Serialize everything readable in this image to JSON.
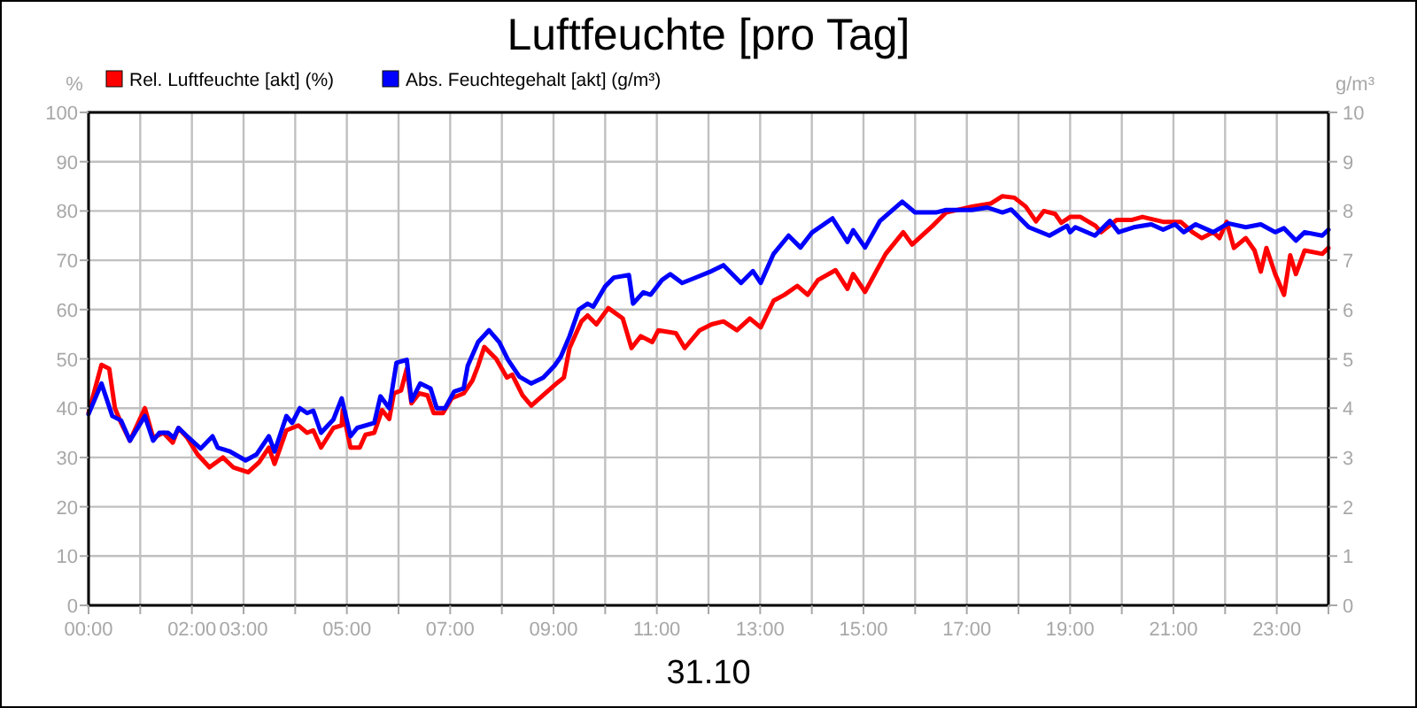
{
  "chart_data": {
    "type": "line",
    "title": "Luftfeuchte [pro Tag]",
    "xlabel": "31.10",
    "ylabel": "%",
    "y2label": "g/m³",
    "xlim": [
      0,
      24
    ],
    "xticks": [
      {
        "value": 0,
        "label": "00:00"
      },
      {
        "value": 1,
        "label": null
      },
      {
        "value": 2,
        "label": "02:00"
      },
      {
        "value": 3,
        "label": "03:00"
      },
      {
        "value": 4,
        "label": null
      },
      {
        "value": 5,
        "label": "05:00"
      },
      {
        "value": 6,
        "label": null
      },
      {
        "value": 7,
        "label": "07:00"
      },
      {
        "value": 8,
        "label": null
      },
      {
        "value": 9,
        "label": "09:00"
      },
      {
        "value": 10,
        "label": null
      },
      {
        "value": 11,
        "label": "11:00"
      },
      {
        "value": 12,
        "label": null
      },
      {
        "value": 13,
        "label": "13:00"
      },
      {
        "value": 14,
        "label": null
      },
      {
        "value": 15,
        "label": "15:00"
      },
      {
        "value": 16,
        "label": null
      },
      {
        "value": 17,
        "label": "17:00"
      },
      {
        "value": 18,
        "label": null
      },
      {
        "value": 19,
        "label": "19:00"
      },
      {
        "value": 20,
        "label": null
      },
      {
        "value": 21,
        "label": "21:00"
      },
      {
        "value": 22,
        "label": null
      },
      {
        "value": 23,
        "label": "23:00"
      },
      {
        "value": 24,
        "label": null
      }
    ],
    "ylim": [
      0,
      100
    ],
    "yticks": [
      0,
      10,
      20,
      30,
      40,
      50,
      60,
      70,
      80,
      90,
      100
    ],
    "y2lim": [
      0,
      10
    ],
    "y2ticks": [
      0,
      1,
      2,
      3,
      4,
      5,
      6,
      7,
      8,
      9,
      10
    ],
    "grid": true,
    "legend": "top left",
    "marker": "none",
    "line_style": "solid",
    "series": [
      {
        "name": "Rel. Luftfeuchte [akt] (%)",
        "color": "#ff0000",
        "x": [
          0,
          0.25,
          0.4,
          0.51,
          0.63,
          0.8,
          1.09,
          1.25,
          1.45,
          1.63,
          1.74,
          1.91,
          2.11,
          2.34,
          2.6,
          2.8,
          3.09,
          3.3,
          3.49,
          3.6,
          3.83,
          4.06,
          4.23,
          4.35,
          4.5,
          4.74,
          4.9,
          4.92,
          5.07,
          5.25,
          5.36,
          5.53,
          5.68,
          5.82,
          5.91,
          6.05,
          6.16,
          6.25,
          6.4,
          6.56,
          6.68,
          6.86,
          7.03,
          7.26,
          7.43,
          7.54,
          7.66,
          7.89,
          8.1,
          8.2,
          8.4,
          8.57,
          8.86,
          9.08,
          9.2,
          9.31,
          9.54,
          9.66,
          9.83,
          10.06,
          10.34,
          10.51,
          10.69,
          10.91,
          11.03,
          11.37,
          11.54,
          11.83,
          12.06,
          12.29,
          12.55,
          12.8,
          13.01,
          13.26,
          13.47,
          13.72,
          13.92,
          14.12,
          14.46,
          14.69,
          14.8,
          15.03,
          15.43,
          15.77,
          15.94,
          16.34,
          16.6,
          17.1,
          17.46,
          17.69,
          17.92,
          18.14,
          18.34,
          18.49,
          18.71,
          18.83,
          19,
          19.2,
          19.49,
          19.6,
          19.9,
          20.2,
          20.4,
          20.8,
          21.14,
          21.37,
          21.55,
          21.77,
          21.89,
          22.03,
          22.17,
          22.4,
          22.57,
          22.69,
          22.8,
          22.97,
          23.14,
          23.26,
          23.37,
          23.54,
          23.88,
          24
        ],
        "values": [
          39,
          48.8,
          48,
          40,
          37,
          33.4,
          40,
          34,
          35,
          33,
          36,
          34,
          30.6,
          28,
          30,
          28,
          27,
          29,
          32,
          28.7,
          35.5,
          36.5,
          35,
          35.5,
          32,
          36,
          36.5,
          39.6,
          32,
          32,
          34.6,
          35,
          39.6,
          37.8,
          43,
          43.6,
          48,
          41,
          43,
          42.6,
          39,
          39,
          42,
          43,
          45.6,
          48.6,
          52.4,
          50,
          46.2,
          46.8,
          42.6,
          40.5,
          43.2,
          45.2,
          46.2,
          52.2,
          57.6,
          58.8,
          57,
          60.3,
          58.2,
          52.2,
          54.6,
          53.4,
          55.8,
          55.2,
          52.2,
          55.8,
          57,
          57.6,
          55.8,
          58.2,
          56.4,
          61.8,
          63,
          64.8,
          63,
          66,
          68,
          64.2,
          67.2,
          63.6,
          71.3,
          75.7,
          73.2,
          77,
          79.7,
          80.9,
          81.5,
          83,
          82.7,
          80.9,
          77.9,
          80,
          79.4,
          77.6,
          78.8,
          78.8,
          77,
          75.7,
          78.2,
          78.2,
          78.8,
          77.8,
          77.8,
          75.7,
          74.5,
          75.7,
          74.5,
          77.8,
          72.5,
          74.5,
          72,
          67.7,
          72.5,
          67.2,
          63,
          71,
          67.2,
          72,
          71.3,
          72.5
        ]
      },
      {
        "name": "Abs. Feuchtegehalt [akt] (g/m³)",
        "color": "#0000ff",
        "axis": "y2",
        "x": [
          0,
          0.25,
          0.46,
          0.63,
          0.8,
          1.09,
          1.25,
          1.37,
          1.54,
          1.65,
          1.74,
          1.91,
          2.17,
          2.4,
          2.5,
          2.74,
          3.04,
          3.25,
          3.49,
          3.6,
          3.83,
          3.94,
          4.09,
          4.23,
          4.35,
          4.5,
          4.74,
          4.9,
          5.07,
          5.2,
          5.53,
          5.65,
          5.82,
          5.96,
          6.16,
          6.25,
          6.42,
          6.62,
          6.74,
          6.9,
          7.08,
          7.26,
          7.34,
          7.54,
          7.75,
          7.95,
          8.12,
          8.34,
          8.57,
          8.8,
          9.02,
          9.14,
          9.31,
          9.49,
          9.66,
          9.77,
          10,
          10.17,
          10.46,
          10.54,
          10.74,
          10.88,
          11.1,
          11.26,
          11.49,
          11.78,
          12.06,
          12.29,
          12.63,
          12.86,
          13.01,
          13.26,
          13.55,
          13.78,
          14,
          14.4,
          14.69,
          14.8,
          15.03,
          15.32,
          15.75,
          16,
          16.4,
          16.6,
          17.1,
          17.4,
          17.69,
          17.86,
          18.2,
          18.6,
          18.94,
          19,
          19.1,
          19.48,
          19.77,
          19.94,
          20.23,
          20.57,
          20.8,
          21.03,
          21.2,
          21.43,
          21.77,
          22.06,
          22.4,
          22.69,
          22.97,
          23.14,
          23.37,
          23.54,
          23.88,
          24
        ],
        "values": [
          3.88,
          4.5,
          3.84,
          3.75,
          3.34,
          3.84,
          3.34,
          3.5,
          3.5,
          3.4,
          3.6,
          3.43,
          3.18,
          3.43,
          3.2,
          3.12,
          2.94,
          3.06,
          3.43,
          3.12,
          3.84,
          3.7,
          4,
          3.9,
          3.95,
          3.5,
          3.77,
          4.2,
          3.43,
          3.6,
          3.7,
          4.24,
          4,
          4.92,
          4.98,
          4.15,
          4.5,
          4.4,
          4,
          4,
          4.34,
          4.4,
          4.86,
          5.34,
          5.58,
          5.34,
          4.98,
          4.64,
          4.5,
          4.62,
          4.86,
          5.04,
          5.46,
          6,
          6.12,
          6.06,
          6.47,
          6.65,
          6.7,
          6.12,
          6.35,
          6.3,
          6.6,
          6.72,
          6.54,
          6.66,
          6.78,
          6.9,
          6.54,
          6.78,
          6.54,
          7.13,
          7.5,
          7.26,
          7.56,
          7.85,
          7.37,
          7.61,
          7.26,
          7.8,
          8.19,
          7.97,
          7.97,
          8.02,
          8.02,
          8.07,
          7.97,
          8.03,
          7.67,
          7.5,
          7.7,
          7.57,
          7.67,
          7.5,
          7.8,
          7.57,
          7.67,
          7.73,
          7.62,
          7.73,
          7.57,
          7.73,
          7.57,
          7.75,
          7.67,
          7.73,
          7.57,
          7.65,
          7.4,
          7.57,
          7.5,
          7.62
        ]
      }
    ]
  }
}
